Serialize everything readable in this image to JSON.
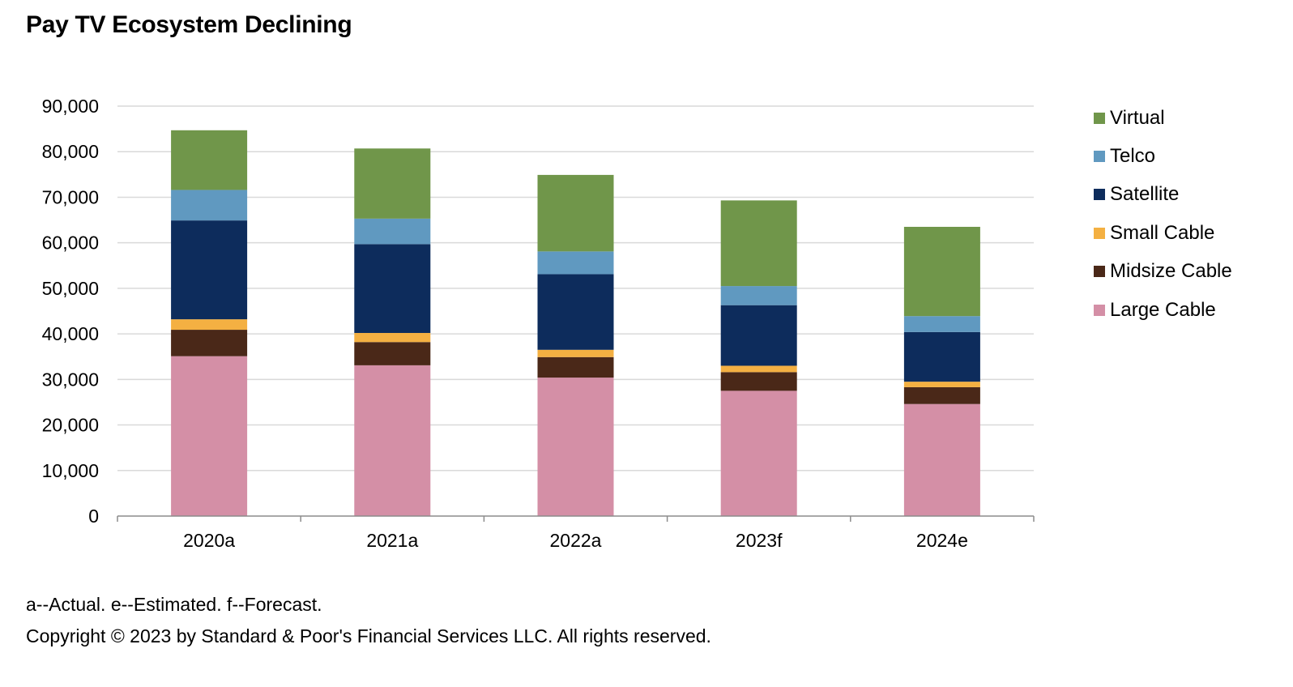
{
  "chart_data": {
    "type": "bar",
    "stacked": true,
    "title": "Pay TV Ecosystem Declining",
    "xlabel": "",
    "ylabel": "",
    "ylim": [
      0,
      90000
    ],
    "yticks": [
      0,
      10000,
      20000,
      30000,
      40000,
      50000,
      60000,
      70000,
      80000,
      90000
    ],
    "ytick_labels": [
      "0",
      "10,000",
      "20,000",
      "30,000",
      "40,000",
      "50,000",
      "60,000",
      "70,000",
      "80,000",
      "90,000"
    ],
    "grid": true,
    "legend_position": "right",
    "categories": [
      "2020a",
      "2021a",
      "2022a",
      "2023f",
      "2024e"
    ],
    "series": [
      {
        "name": "Large Cable",
        "color": "#D48FA6",
        "values": [
          35100,
          33100,
          30400,
          27500,
          24600
        ]
      },
      {
        "name": "Midsize Cable",
        "color": "#4A2818",
        "values": [
          5800,
          5100,
          4500,
          4100,
          3700
        ]
      },
      {
        "name": "Small Cable",
        "color": "#F4B042",
        "values": [
          2300,
          2000,
          1600,
          1400,
          1200
        ]
      },
      {
        "name": "Satellite",
        "color": "#0D2C5C",
        "values": [
          21700,
          19500,
          16600,
          13300,
          10900
        ]
      },
      {
        "name": "Telco",
        "color": "#6099C0",
        "values": [
          6700,
          5600,
          5000,
          4200,
          3500
        ]
      },
      {
        "name": "Virtual",
        "color": "#70964A",
        "values": [
          13100,
          15400,
          16800,
          18800,
          19600
        ]
      }
    ],
    "legend_order": [
      "Virtual",
      "Telco",
      "Satellite",
      "Small Cable",
      "Midsize Cable",
      "Large Cable"
    ]
  },
  "footnotes": {
    "legend_note": "a--Actual. e--Estimated. f--Forecast.",
    "copyright": "Copyright © 2023 by Standard & Poor's Financial Services LLC. All rights reserved."
  }
}
